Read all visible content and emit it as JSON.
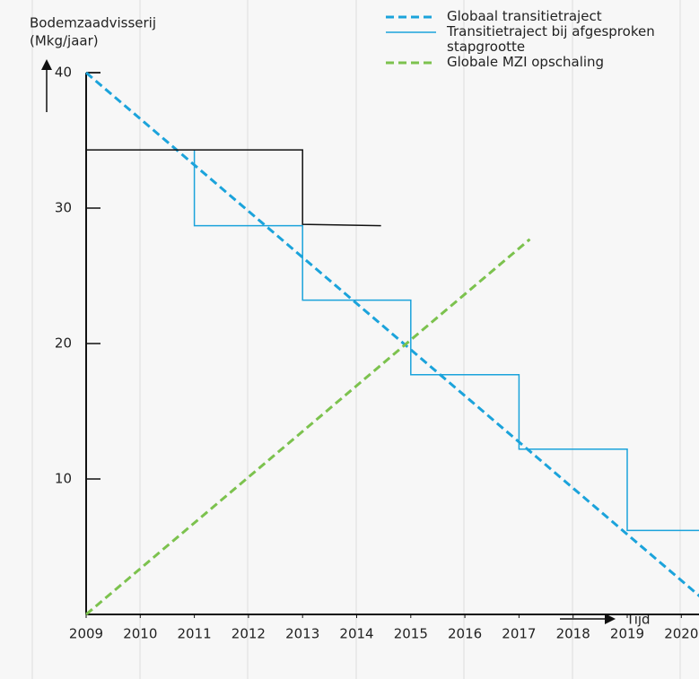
{
  "chart_data": {
    "type": "line",
    "y_label_lines": [
      "Bodemzaadvisserij",
      "(Mkg/jaar)"
    ],
    "x_label": "Tijd",
    "xlim": [
      2009,
      2021
    ],
    "ylim": [
      0,
      40
    ],
    "xticks": [
      2009,
      2010,
      2011,
      2012,
      2013,
      2014,
      2015,
      2016,
      2017,
      2018,
      2019,
      2020
    ],
    "yticks": [
      10,
      20,
      30,
      40
    ],
    "series": [
      {
        "name": "Globaal transitietraject",
        "color": "#1ba3db",
        "dashed": true,
        "width": 3,
        "x": [
          2009,
          2020.5
        ],
        "values": [
          40,
          0.8
        ]
      },
      {
        "name": "Transitietraject bij afgesproken stapgrootte",
        "color": "#1ba3db",
        "dashed": false,
        "width": 1.5,
        "x": [
          2011,
          2011,
          2013,
          2013,
          2015,
          2015,
          2017,
          2017,
          2019,
          2019,
          2021
        ],
        "values": [
          34.3,
          28.7,
          28.7,
          23.2,
          23.2,
          17.7,
          17.7,
          12.2,
          12.2,
          6.2,
          6.2
        ]
      },
      {
        "name": "Globale MZI opschaling",
        "color": "#7cc24e",
        "dashed": true,
        "width": 3,
        "x": [
          2009,
          2017.2
        ],
        "values": [
          0,
          27.7
        ]
      },
      {
        "color": "#111111",
        "dashed": false,
        "width": 1.5,
        "x": [
          2009,
          2013,
          2013,
          2014.45
        ],
        "values": [
          34.3,
          34.3,
          28.8,
          28.7
        ]
      }
    ]
  }
}
